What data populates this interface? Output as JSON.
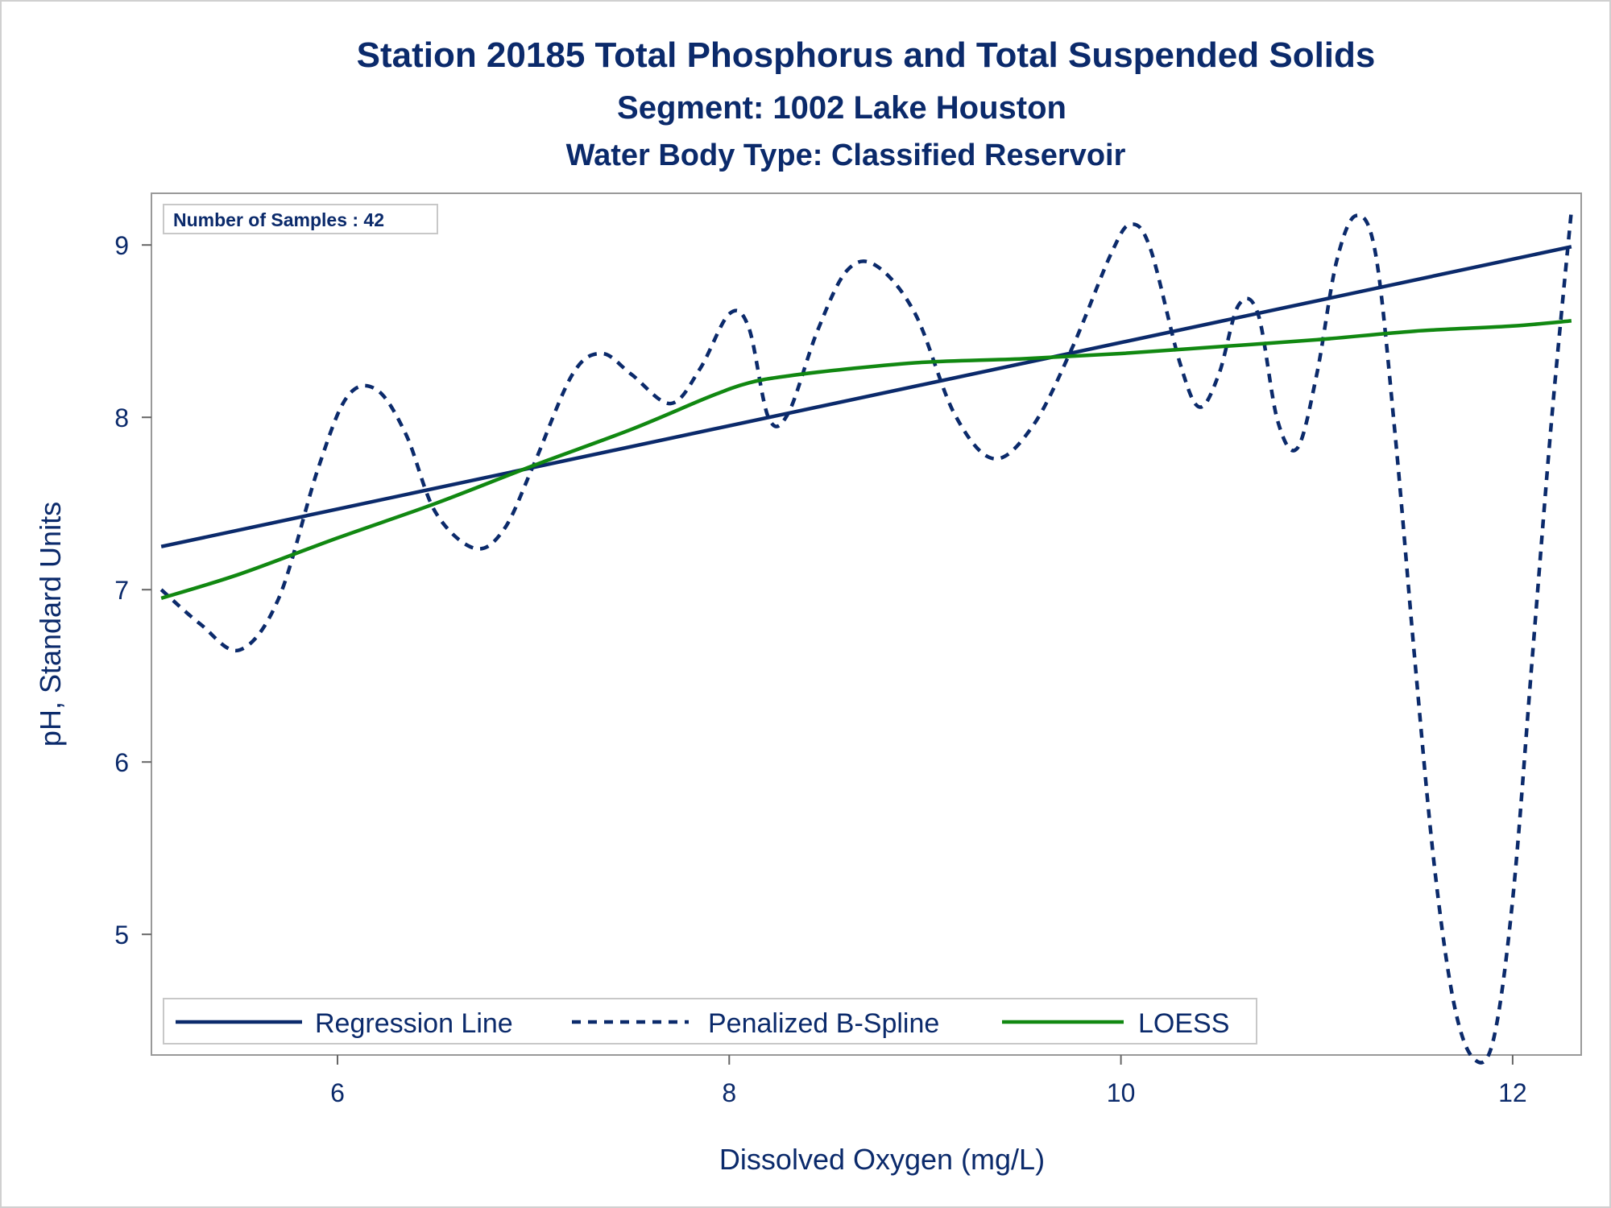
{
  "chart_data": {
    "type": "line",
    "title": "Station 20185  Total Phosphorus and Total Suspended Solids",
    "subtitle": "Segment: 1002  Lake Houston",
    "subtitle2": "Water Body Type: Classified Reservoir",
    "annotation": "Number of Samples : 42",
    "xlabel": "Dissolved Oxygen (mg/L)",
    "ylabel": "pH, Standard Units",
    "xlim": [
      5.05,
      12.35
    ],
    "ylim": [
      4.3,
      9.3
    ],
    "x_ticks": [
      6,
      8,
      10,
      12
    ],
    "x_tick_labels": [
      "6",
      "8",
      "10",
      "12"
    ],
    "y_ticks": [
      5,
      6,
      7,
      8,
      9
    ],
    "y_tick_labels": [
      "5",
      "6",
      "7",
      "8",
      "9"
    ],
    "grid": false,
    "legend_position": "bottom-left",
    "series": [
      {
        "name": "Regression Line",
        "color": "#0b2a6b",
        "style": "solid",
        "x": [
          5.1,
          12.3
        ],
        "y": [
          7.25,
          8.99
        ]
      },
      {
        "name": "Penalized B-Spline",
        "color": "#0b2a6b",
        "style": "dashed",
        "x": [
          5.1,
          5.3,
          5.5,
          5.7,
          5.9,
          6.05,
          6.2,
          6.35,
          6.5,
          6.7,
          6.85,
          7.0,
          7.2,
          7.35,
          7.5,
          7.7,
          7.85,
          8.0,
          8.1,
          8.2,
          8.3,
          8.45,
          8.6,
          8.75,
          8.95,
          9.15,
          9.35,
          9.55,
          9.75,
          9.95,
          10.05,
          10.15,
          10.3,
          10.4,
          10.5,
          10.6,
          10.7,
          10.8,
          10.9,
          11.0,
          11.1,
          11.2,
          11.3,
          11.4,
          11.5,
          11.6,
          11.7,
          11.8,
          11.9,
          12.0,
          12.1,
          12.2,
          12.3
        ],
        "y": [
          7.0,
          6.8,
          6.65,
          6.95,
          7.7,
          8.12,
          8.16,
          7.9,
          7.45,
          7.24,
          7.35,
          7.72,
          8.25,
          8.37,
          8.25,
          8.08,
          8.28,
          8.6,
          8.52,
          8.0,
          8.02,
          8.5,
          8.85,
          8.88,
          8.6,
          8.02,
          7.76,
          7.95,
          8.4,
          8.95,
          9.12,
          8.98,
          8.32,
          8.06,
          8.25,
          8.65,
          8.6,
          7.98,
          7.82,
          8.25,
          8.9,
          9.17,
          8.95,
          7.9,
          6.6,
          5.4,
          4.6,
          4.28,
          4.38,
          5.2,
          6.6,
          8.0,
          9.2
        ]
      },
      {
        "name": "LOESS",
        "color": "#118811",
        "style": "solid",
        "x": [
          5.1,
          5.5,
          6.0,
          6.5,
          7.0,
          7.5,
          7.9,
          8.1,
          8.3,
          8.6,
          9.0,
          9.5,
          10.0,
          10.5,
          11.0,
          11.5,
          12.0,
          12.3
        ],
        "y": [
          6.95,
          7.09,
          7.3,
          7.5,
          7.72,
          7.93,
          8.12,
          8.2,
          8.24,
          8.28,
          8.32,
          8.34,
          8.37,
          8.41,
          8.45,
          8.5,
          8.53,
          8.56
        ]
      }
    ]
  }
}
